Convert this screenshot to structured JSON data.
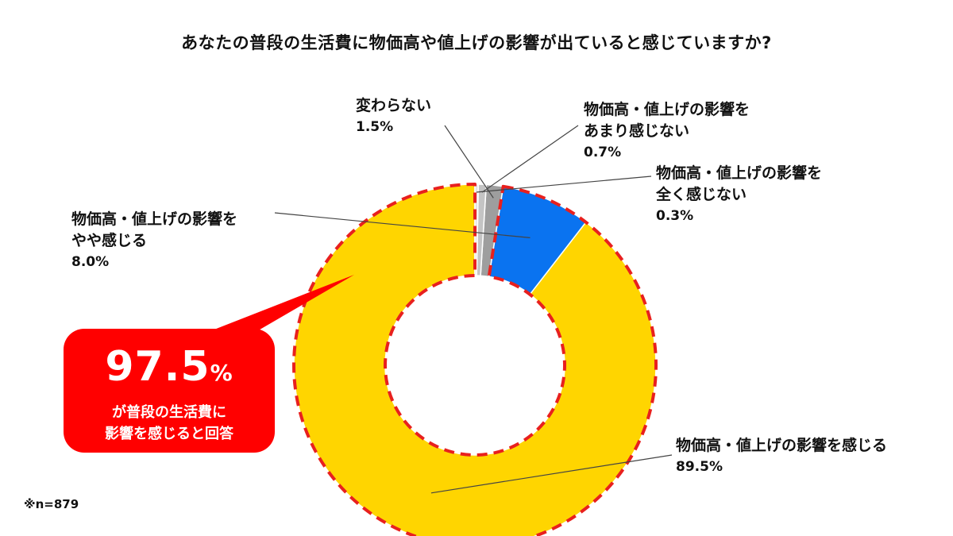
{
  "chart_data": {
    "type": "pie",
    "variant": "donut",
    "title": "あなたの普段の生活費に物価高や値上げの影響が出ていると感じていますか?",
    "slices": [
      {
        "line1": "物価高・値上げの影響を感じる",
        "line2": "",
        "value": 89.5,
        "display": "89.5%",
        "color": "#FFD500"
      },
      {
        "line1": "物価高・値上げの影響を",
        "line2": "やや感じる",
        "value": 8.0,
        "display": "8.0%",
        "color": "#0A73F0"
      },
      {
        "line1": "変わらない",
        "line2": "",
        "value": 1.5,
        "display": "1.5%",
        "color": "#9E9E9E"
      },
      {
        "line1": "物価高・値上げの影響を",
        "line2": "あまり感じない",
        "value": 0.7,
        "display": "0.7%",
        "color": "#C4C4C4"
      },
      {
        "line1": "物価高・値上げの影響を",
        "line2": "全く感じない",
        "value": 0.3,
        "display": "0.3%",
        "color": "#E4E4E4"
      }
    ],
    "highlight_border_color": "#E8201E",
    "direction": "counterclockwise-from-top"
  },
  "callout": {
    "value": "97.5",
    "unit": "%",
    "line1": "が普段の生活費に",
    "line2": "影響を感じると回答",
    "color": "#FF0000"
  },
  "note": "※n=879"
}
